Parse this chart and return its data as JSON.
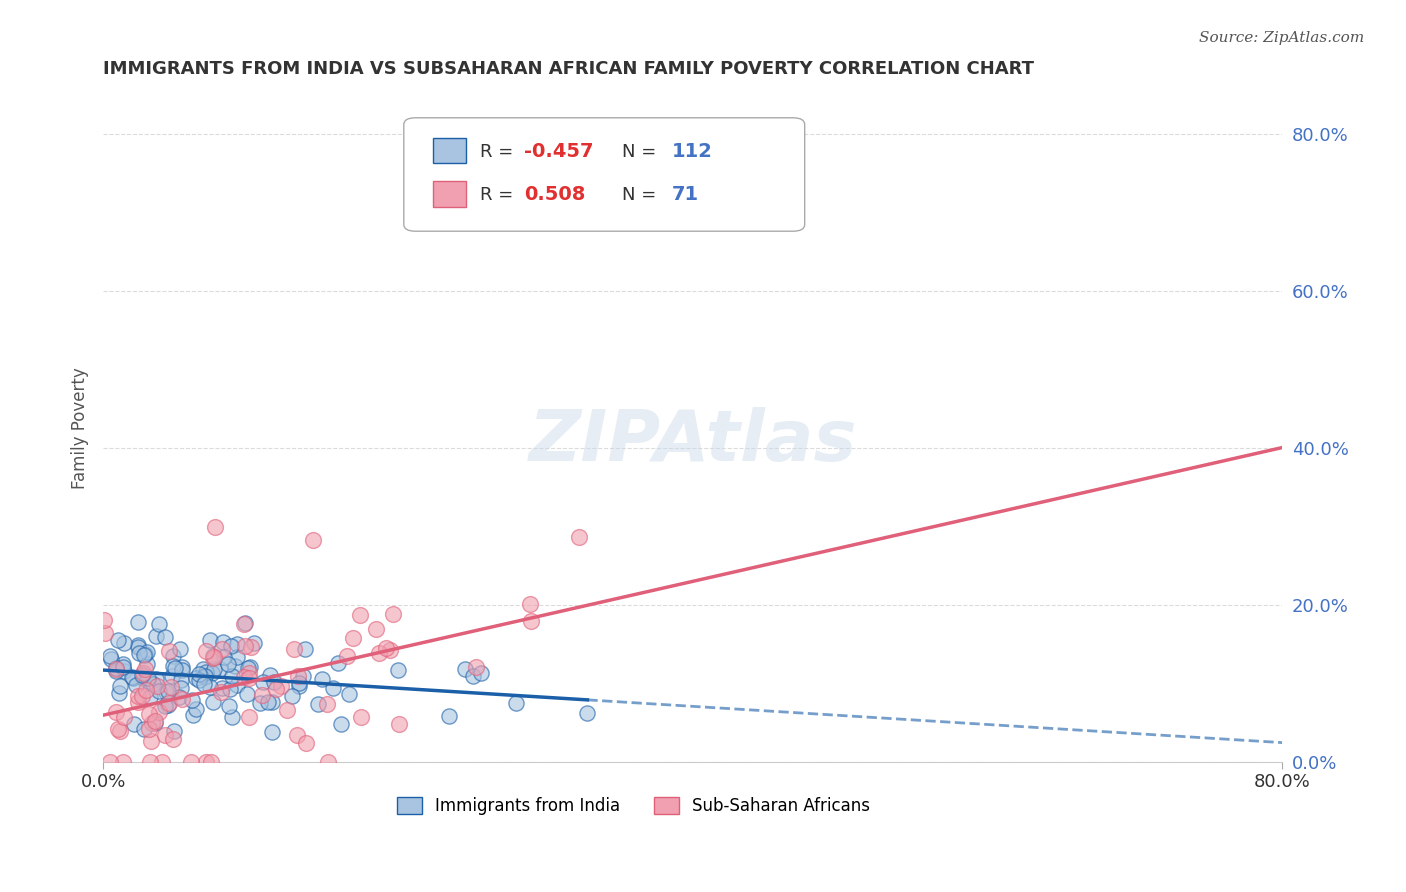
{
  "title": "IMMIGRANTS FROM INDIA VS SUBSAHARAN AFRICAN FAMILY POVERTY CORRELATION CHART",
  "source_text": "Source: ZipAtlas.com",
  "ylabel": "Family Poverty",
  "xlim": [
    0,
    0.8
  ],
  "ylim": [
    0,
    0.85
  ],
  "ytick_labels": [
    "0.0%",
    "20.0%",
    "40.0%",
    "60.0%",
    "80.0%"
  ],
  "ytick_values": [
    0.0,
    0.2,
    0.4,
    0.6,
    0.8
  ],
  "xtick_labels": [
    "0.0%",
    "80.0%"
  ],
  "xtick_values": [
    0.0,
    0.8
  ],
  "legend_R1": "-0.457",
  "legend_N1": "112",
  "legend_R2": "0.508",
  "legend_N2": "71",
  "color_india": "#a8c4e0",
  "color_africa": "#f0a0b0",
  "color_india_line": "#1a5fa8",
  "color_africa_line": "#e0607a",
  "watermark_text": "ZIPAtlas",
  "background_color": "#ffffff",
  "grid_color": "#cccccc",
  "title_color": "#333333",
  "yaxis_label_color": "#4472c4",
  "india_seed": 42,
  "africa_seed": 123,
  "india_n": 112,
  "africa_n": 71
}
